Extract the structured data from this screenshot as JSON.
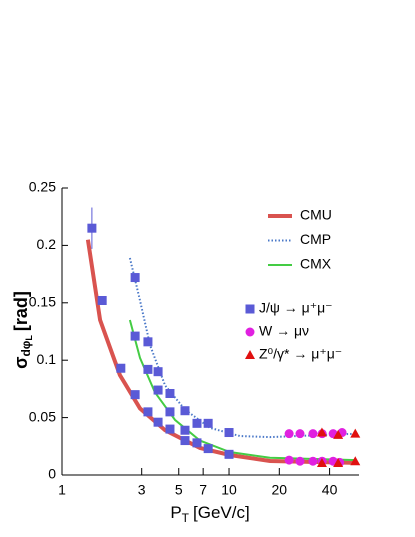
{
  "chart_data": {
    "type": "scatter",
    "xlabel": {
      "main": "P",
      "sub": "T",
      "unit": "[GeV/c]"
    },
    "ylabel": {
      "main": "σ",
      "sub": "dφ",
      "subsub": "L",
      "unit": "[rad]"
    },
    "xscale": "log",
    "xlim": [
      1,
      60
    ],
    "ylim": [
      0,
      0.25
    ],
    "xticks": [
      1,
      3,
      5,
      7,
      10,
      20,
      40
    ],
    "yticks": [
      0,
      0.05,
      0.1,
      0.15,
      0.2,
      0.25
    ],
    "series": [
      {
        "name": "CMU",
        "kind": "line",
        "style": "solid",
        "color": "#d9534f",
        "x": [
          1.43,
          1.69,
          2.22,
          2.93,
          4.14,
          6.7,
          10.1,
          17.6,
          58
        ],
        "values": [
          0.205,
          0.135,
          0.087,
          0.058,
          0.039,
          0.0235,
          0.0174,
          0.0122,
          0.0105
        ]
      },
      {
        "name": "CMP",
        "kind": "line",
        "style": "dotted",
        "color": "#4a78c8",
        "x": [
          2.55,
          2.93,
          3.37,
          4.14,
          5.45,
          7.7,
          11.6,
          17.6,
          58
        ],
        "values": [
          0.189,
          0.152,
          0.113,
          0.078,
          0.057,
          0.041,
          0.034,
          0.033,
          0.036
        ]
      },
      {
        "name": "CMX",
        "kind": "line",
        "style": "solid",
        "color": "#44cc44",
        "x": [
          2.55,
          2.93,
          3.6,
          4.75,
          6.7,
          10.1,
          17.6,
          58
        ],
        "values": [
          0.135,
          0.102,
          0.072,
          0.048,
          0.03,
          0.02,
          0.015,
          0.013
        ]
      },
      {
        "name": "J/ψ → μ⁺μ⁻",
        "kind": "square",
        "color": "#5a5ad6",
        "x": [
          1.51,
          1.74,
          2.25,
          2.74,
          2.74,
          2.74,
          3.27,
          3.27,
          3.27,
          3.76,
          3.76,
          3.76,
          4.43,
          4.43,
          4.43,
          5.45,
          5.45,
          5.45,
          6.43,
          6.43,
          7.5,
          7.5,
          10,
          10
        ],
        "values": [
          0.215,
          0.152,
          0.093,
          0.172,
          0.121,
          0.07,
          0.116,
          0.092,
          0.055,
          0.09,
          0.074,
          0.046,
          0.071,
          0.055,
          0.04,
          0.056,
          0.039,
          0.03,
          0.045,
          0.028,
          0.045,
          0.023,
          0.037,
          0.018
        ],
        "errors": [
          0.018,
          null,
          null,
          null,
          null,
          null,
          null,
          null,
          null,
          null,
          null,
          null,
          null,
          null,
          null,
          null,
          null,
          null,
          null,
          null,
          null,
          null,
          null,
          null
        ]
      },
      {
        "name": "W → μν",
        "kind": "circle",
        "color": "#e020e0",
        "x": [
          22.9,
          26.6,
          31.8,
          36.1,
          42,
          47.5,
          22.9,
          26.6,
          31.8,
          36.1,
          42,
          46
        ],
        "values": [
          0.036,
          0.036,
          0.036,
          0.036,
          0.036,
          0.037,
          0.013,
          0.012,
          0.012,
          0.012,
          0.012,
          0.011
        ]
      },
      {
        "name": "Z⁰/γ* → μ⁺μ⁻",
        "kind": "triangle",
        "color": "#e01010",
        "x": [
          36,
          45,
          57,
          36,
          45,
          57
        ],
        "values": [
          0.037,
          0.035,
          0.036,
          0.0105,
          0.0105,
          0.012
        ]
      }
    ]
  }
}
